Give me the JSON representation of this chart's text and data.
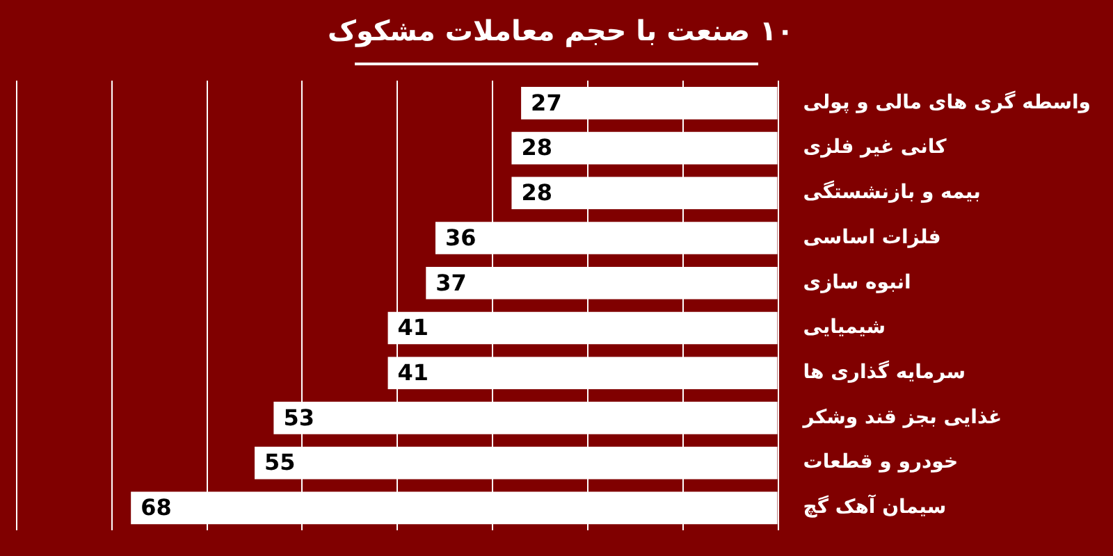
{
  "chart_data": {
    "type": "bar",
    "orientation": "horizontal",
    "title": "۱۰ صنعت با حجم معاملات مشکوک",
    "categories": [
      "واسطه گری های مالی و پولی",
      "کانی غیر فلزی",
      "بیمه و بازنشستگی",
      "فلزات اساسی",
      "انبوه سازی",
      "شیمیایی",
      "سرمایه گذاری ها",
      "غذایی بجز قند وشکر",
      "خودرو و قطعات",
      "سیمان آهک گچ"
    ],
    "values": [
      27,
      28,
      28,
      36,
      37,
      41,
      41,
      53,
      55,
      68
    ],
    "color": "#ffffff",
    "xlim": [
      80,
      0
    ],
    "xticks": [
      {
        "value": 80,
        "label": null
      },
      {
        "value": 70,
        "label": null
      },
      {
        "value": 60,
        "label": null
      },
      {
        "value": 50,
        "label": null
      },
      {
        "value": 40,
        "label": null
      },
      {
        "value": 30,
        "label": null
      },
      {
        "value": 20,
        "label": null
      },
      {
        "value": 10,
        "label": null
      },
      {
        "value": 0,
        "label": null
      }
    ],
    "tick_labels": "y",
    "grid": "x",
    "data_labels": true,
    "legend": false
  }
}
